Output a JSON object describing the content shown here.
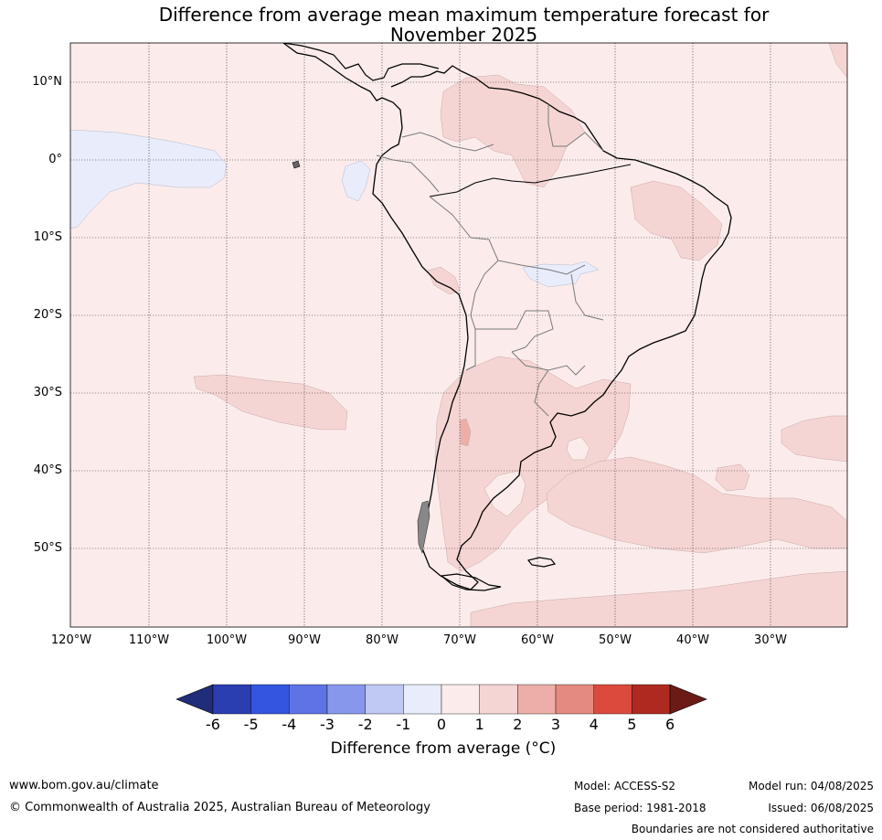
{
  "title": {
    "line1": "Difference from average mean maximum temperature forecast for",
    "line2": "November 2025"
  },
  "axes": {
    "lat_labels": [
      "10°N",
      "0°",
      "10°S",
      "20°S",
      "30°S",
      "40°S",
      "50°S"
    ],
    "lon_labels": [
      "120°W",
      "110°W",
      "100°W",
      "90°W",
      "80°W",
      "70°W",
      "60°W",
      "50°W",
      "40°W",
      "30°W"
    ]
  },
  "colorbar": {
    "ticks": [
      "-6",
      "-5",
      "-4",
      "-3",
      "-2",
      "-1",
      "0",
      "1",
      "2",
      "3",
      "4",
      "5",
      "6"
    ],
    "label": "Difference from average (°C)",
    "colors": [
      "#1f2d7a",
      "#2a3eb1",
      "#3355e0",
      "#5f73e6",
      "#8797ec",
      "#c0c8f4",
      "#e8ecfb",
      "#fbeceb",
      "#f5d5d3",
      "#edaea9",
      "#e58a80",
      "#db4a3c",
      "#ae2a20",
      "#6b1a16"
    ]
  },
  "footer": {
    "website": "www.bom.gov.au/climate",
    "copyright": "© Commonwealth of Australia 2025, Australian Bureau of Meteorology",
    "model": "Model: ACCESS-S2",
    "base_period": "Base period: 1981-2018",
    "model_run": "Model run: 04/08/2025",
    "issued": "Issued: 06/08/2025",
    "disclaimer": "Boundaries are not considered authoritative"
  }
}
